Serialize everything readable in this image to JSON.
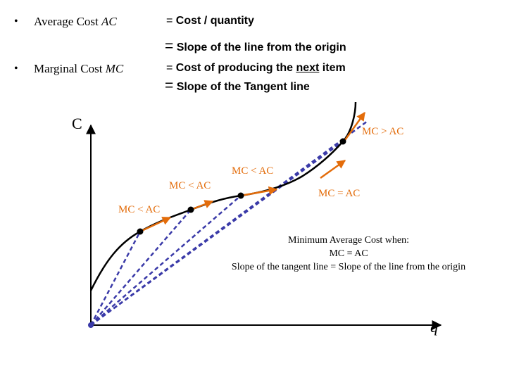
{
  "bullets": [
    {
      "term": "Average Cost",
      "symbol": "AC",
      "line1_eq": "=",
      "line1": "Cost / quantity",
      "line2_eq": "=",
      "line2": "Slope of the line from the origin"
    },
    {
      "term": "Marginal Cost",
      "symbol": "MC",
      "line1_eq": "=",
      "line1_pre": "Cost of producing the ",
      "line1_u": "next",
      "line1_post": " item",
      "line2_eq": "=",
      "line2": "Slope of the Tangent line"
    }
  ],
  "bullet_char": "•",
  "axes": {
    "y_label": "C",
    "x_label": "q"
  },
  "region_labels": {
    "mc_gt_ac": "MC > AC",
    "mc_lt_ac_1": "MC < AC",
    "mc_lt_ac_2": "MC < AC",
    "mc_lt_ac_3": "MC < AC",
    "mc_eq_ac": "MC = AC"
  },
  "annotation": {
    "line1": "Minimum Average Cost when:",
    "line2": "MC = AC",
    "line3": "Slope of the tangent line = Slope of the line from the origin"
  },
  "colors": {
    "curve": "#000000",
    "tangent": "#e36c0a",
    "ray": "#3a3aa8",
    "label": "#e36c0a"
  }
}
